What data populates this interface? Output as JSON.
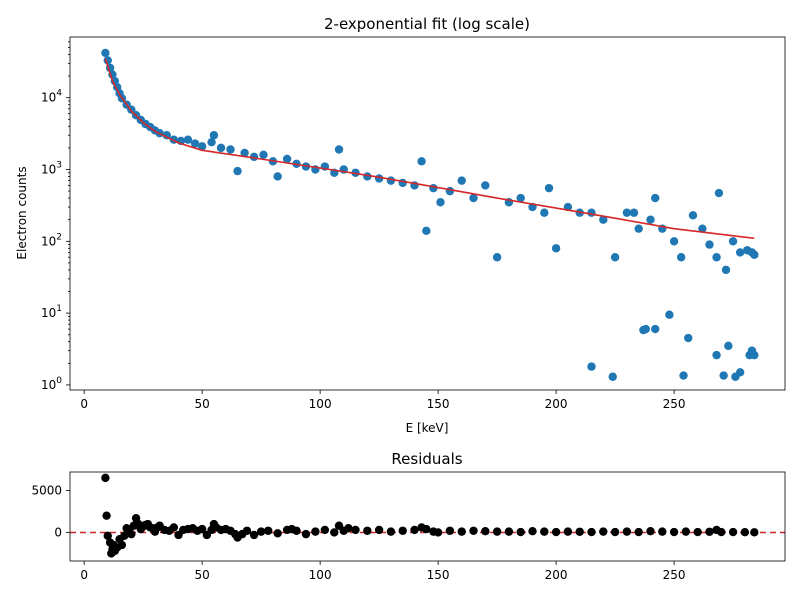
{
  "chart_data": [
    {
      "type": "scatter",
      "title": "2-exponential fit (log scale)",
      "xlabel": "E [keV]",
      "ylabel": "Electron counts",
      "xlim": [
        -6,
        297
      ],
      "ylim": [
        0.85,
        70000
      ],
      "yscale": "log",
      "x_ticks": [
        0,
        50,
        100,
        150,
        200,
        250
      ],
      "y_ticks": [
        {
          "value": 1,
          "base": "10",
          "exp": "0"
        },
        {
          "value": 10,
          "base": "10",
          "exp": "1"
        },
        {
          "value": 100,
          "base": "10",
          "exp": "2"
        },
        {
          "value": 1000,
          "base": "10",
          "exp": "3"
        },
        {
          "value": 10000,
          "base": "10",
          "exp": "4"
        }
      ],
      "point_color": "#1f77b4",
      "fit_color": "#d62728",
      "series": [
        {
          "name": "data",
          "x": [
            9,
            10,
            11,
            12,
            13,
            14,
            15,
            16,
            18,
            20,
            22,
            24,
            26,
            28,
            30,
            32,
            35,
            38,
            41,
            44,
            47,
            50,
            54,
            55,
            58,
            62,
            65,
            68,
            72,
            76,
            80,
            82,
            86,
            90,
            94,
            98,
            102,
            106,
            108,
            110,
            115,
            120,
            125,
            130,
            135,
            140,
            143,
            145,
            148,
            151,
            155,
            160,
            165,
            170,
            175,
            180,
            185,
            190,
            195,
            197,
            200,
            205,
            210,
            215,
            220,
            225,
            230,
            233,
            235,
            238,
            240,
            242,
            245,
            248,
            250,
            253,
            256,
            258,
            262,
            265,
            268,
            269,
            272,
            275,
            278,
            281,
            283,
            284
          ],
          "y": [
            42000,
            33000,
            26000,
            21000,
            17000,
            14000,
            11500,
            9800,
            8000,
            6800,
            5700,
            4900,
            4300,
            3900,
            3500,
            3200,
            3000,
            2600,
            2500,
            2600,
            2300,
            2100,
            2400,
            3000,
            2000,
            1900,
            950,
            1700,
            1500,
            1600,
            1300,
            800,
            1400,
            1200,
            1100,
            1000,
            1100,
            900,
            1900,
            1000,
            900,
            800,
            750,
            700,
            650,
            600,
            1300,
            140,
            550,
            350,
            500,
            700,
            400,
            600,
            60,
            350,
            400,
            300,
            250,
            550,
            80,
            300,
            250,
            250,
            200,
            60,
            250,
            250,
            150,
            6,
            200,
            400,
            150,
            9.5,
            100,
            60,
            4.5,
            230,
            150,
            90,
            60,
            470,
            40,
            100,
            70,
            75,
            70,
            65
          ]
        },
        {
          "name": "outliers",
          "x": [
            215,
            224,
            242,
            237,
            254,
            268,
            271,
            273,
            276,
            278,
            282,
            283,
            284
          ],
          "y": [
            1.8,
            1.3,
            6,
            5.8,
            1.35,
            2.6,
            1.35,
            3.5,
            1.3,
            1.5,
            2.6,
            3,
            2.6
          ]
        },
        {
          "name": "fit",
          "x": [
            9,
            12,
            15,
            20,
            25,
            30,
            40,
            50,
            75,
            100,
            125,
            150,
            175,
            200,
            225,
            250,
            284
          ],
          "y": [
            35000,
            17000,
            11000,
            6500,
            4500,
            3400,
            2350,
            1850,
            1400,
            1050,
            780,
            560,
            400,
            290,
            210,
            150,
            110
          ]
        }
      ]
    },
    {
      "type": "scatter",
      "title": "Residuals",
      "xlabel": "",
      "ylabel": "",
      "xlim": [
        -6,
        297
      ],
      "ylim": [
        -3400,
        7200
      ],
      "x_ticks": [
        0,
        50,
        100,
        150,
        200,
        250
      ],
      "y_ticks": [
        0,
        5000
      ],
      "point_color": "#000000",
      "zero_line_color": "#d62728",
      "series": [
        {
          "name": "residuals",
          "x": [
            9,
            9.5,
            10,
            11,
            11.5,
            12,
            12.5,
            13,
            14,
            15,
            16,
            17,
            18,
            19,
            20,
            21,
            22,
            23,
            24,
            25,
            26,
            27,
            28,
            29,
            30,
            31,
            32,
            34,
            36,
            38,
            40,
            42,
            44,
            46,
            48,
            50,
            52,
            54,
            55,
            56,
            58,
            60,
            62,
            64,
            65,
            67,
            69,
            72,
            75,
            78,
            82,
            86,
            88,
            90,
            94,
            98,
            102,
            106,
            108,
            110,
            112,
            115,
            120,
            125,
            130,
            135,
            140,
            143,
            145,
            148,
            150,
            155,
            160,
            165,
            170,
            175,
            180,
            185,
            190,
            195,
            200,
            205,
            210,
            215,
            220,
            225,
            230,
            235,
            240,
            245,
            250,
            255,
            260,
            265,
            268,
            270,
            275,
            280,
            284
          ],
          "y": [
            6500,
            2000,
            -400,
            -1200,
            -2500,
            -2000,
            -1500,
            -2200,
            -1800,
            -800,
            -1500,
            -400,
            500,
            300,
            -200,
            800,
            1700,
            1000,
            400,
            700,
            900,
            1000,
            600,
            500,
            100,
            600,
            800,
            300,
            200,
            600,
            -300,
            300,
            400,
            500,
            200,
            400,
            -300,
            300,
            1000,
            600,
            300,
            400,
            200,
            -200,
            -600,
            -200,
            200,
            -300,
            100,
            200,
            -100,
            300,
            400,
            200,
            -200,
            100,
            300,
            0,
            800,
            200,
            500,
            300,
            200,
            300,
            100,
            200,
            300,
            600,
            400,
            100,
            0,
            200,
            100,
            200,
            150,
            100,
            100,
            50,
            150,
            100,
            50,
            100,
            80,
            50,
            100,
            50,
            100,
            50,
            150,
            100,
            50,
            100,
            50,
            80,
            300,
            50,
            50,
            30,
            20
          ]
        }
      ]
    }
  ]
}
